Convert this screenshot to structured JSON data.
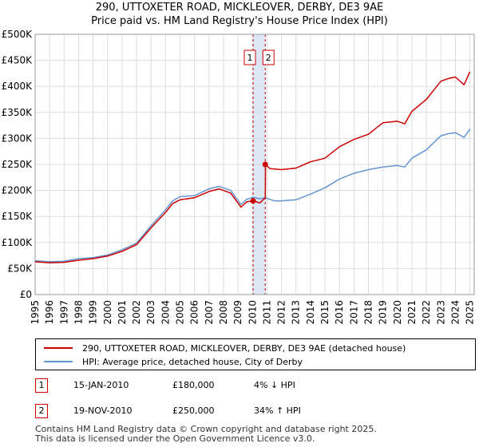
{
  "title_line1": "290, UTTOXETER ROAD, MICKLEOVER, DERBY, DE3 9AE",
  "title_line2": "Price paid vs. HM Land Registry's House Price Index (HPI)",
  "colors": {
    "property": "#cc0000",
    "hpi": "#6495d2",
    "band": "#dde6f5",
    "grid": "#dddddd",
    "marker_border": "#cc0000"
  },
  "chart_data": {
    "type": "line",
    "xlabel": "",
    "ylabel": "",
    "xlim": [
      1995,
      2025.3
    ],
    "ylim": [
      0,
      500000
    ],
    "yticks": [
      0,
      50000,
      100000,
      150000,
      200000,
      250000,
      300000,
      350000,
      400000,
      450000,
      500000
    ],
    "ytick_labels": [
      "£0",
      "£50K",
      "£100K",
      "£150K",
      "£200K",
      "£250K",
      "£300K",
      "£350K",
      "£400K",
      "£450K",
      "£500K"
    ],
    "xtick_labels": [
      "1995",
      "1996",
      "1997",
      "1998",
      "1999",
      "2000",
      "2001",
      "2002",
      "2003",
      "2004",
      "2005",
      "2006",
      "2007",
      "2008",
      "2009",
      "2010",
      "2011",
      "2012",
      "2013",
      "2014",
      "2015",
      "2016",
      "2017",
      "2018",
      "2019",
      "2020",
      "2021",
      "2022",
      "2023",
      "2024",
      "2025"
    ],
    "grid": true,
    "series": [
      {
        "name": "290, UTTOXETER ROAD, MICKLEOVER, DERBY, DE3 9AE (detached house)",
        "x": [
          1995,
          1996,
          1997,
          1998,
          1999,
          2000,
          2001,
          2002,
          2003,
          2004,
          2004.5,
          2005,
          2006,
          2007,
          2007.7,
          2008.5,
          2009.2,
          2009.6,
          2010.04,
          2010.5,
          2010.88,
          2010.9,
          2011.2,
          2012,
          2013,
          2014,
          2015,
          2016,
          2017,
          2018,
          2019,
          2020,
          2020.5,
          2021,
          2022,
          2023,
          2023.5,
          2024,
          2024.6,
          2025
        ],
        "y": [
          63000,
          61000,
          62000,
          66000,
          69000,
          74000,
          83000,
          96000,
          128000,
          158000,
          175000,
          182000,
          186000,
          198000,
          203000,
          195000,
          168000,
          178000,
          180000,
          176000,
          186000,
          250000,
          242000,
          240000,
          243000,
          255000,
          262000,
          284000,
          298000,
          308000,
          330000,
          333000,
          328000,
          352000,
          375000,
          410000,
          415000,
          418000,
          403000,
          428000
        ]
      },
      {
        "name": "HPI: Average price, detached house, City of Derby",
        "x": [
          1995,
          1996,
          1997,
          1998,
          1999,
          2000,
          2001,
          2002,
          2003,
          2004,
          2004.5,
          2005,
          2006,
          2007,
          2007.7,
          2008.5,
          2009.2,
          2009.6,
          2010.04,
          2010.5,
          2010.88,
          2011.5,
          2012,
          2013,
          2014,
          2015,
          2016,
          2017,
          2018,
          2019,
          2020,
          2020.5,
          2021,
          2022,
          2023,
          2023.5,
          2024,
          2024.6,
          2025
        ],
        "y": [
          65000,
          63000,
          64000,
          69000,
          71000,
          76000,
          86000,
          99000,
          132000,
          163000,
          180000,
          188000,
          190000,
          203000,
          208000,
          200000,
          173000,
          183000,
          187000,
          184000,
          186000,
          180000,
          180000,
          182000,
          193000,
          205000,
          222000,
          233000,
          240000,
          245000,
          248000,
          245000,
          262000,
          278000,
          305000,
          309000,
          311000,
          302000,
          318000
        ]
      }
    ],
    "sales": [
      {
        "label": "1",
        "x": 2010.04,
        "y": 180000
      },
      {
        "label": "2",
        "x": 2010.88,
        "y": 250000
      }
    ]
  },
  "legend": {
    "property_label": "290, UTTOXETER ROAD, MICKLEOVER, DERBY, DE3 9AE (detached house)",
    "hpi_label": "HPI: Average price, detached house, City of Derby"
  },
  "transactions": [
    {
      "num": "1",
      "date": "15-JAN-2010",
      "price": "£180,000",
      "hpi": "4% ↓ HPI"
    },
    {
      "num": "2",
      "date": "19-NOV-2010",
      "price": "£250,000",
      "hpi": "34% ↑ HPI"
    }
  ],
  "footer_line1": "Contains HM Land Registry data © Crown copyright and database right 2025.",
  "footer_line2": "This data is licensed under the Open Government Licence v3.0."
}
